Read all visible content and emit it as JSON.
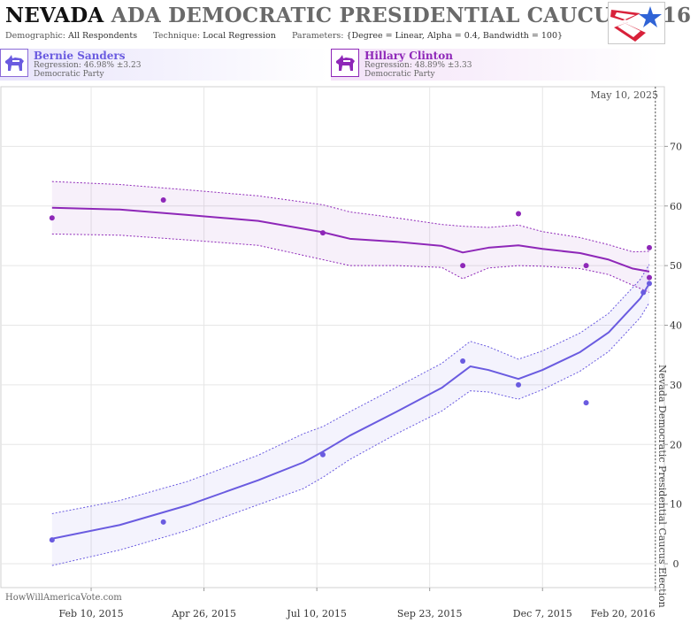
{
  "header": {
    "title_state": "NEVADA",
    "title_rest": "ADA DEMOCRATIC PRESIDENTIAL CAUCUS 2016",
    "demographic_label": "Demographic:",
    "demographic_value": "All Respondents",
    "technique_label": "Technique:",
    "technique_value": "Local Regression",
    "parameters_label": "Parameters:",
    "parameters_value": "{Degree = Linear, Alpha = 0.4, Bandwidth = 100}",
    "logo_icon": "star-flag-logo-icon"
  },
  "candidates": [
    {
      "name": "Bernie Sanders",
      "regression": "Regression: 46.98% ±3.23",
      "party": "Democratic Party",
      "color": "#6a5be0",
      "icon": "donkey-icon"
    },
    {
      "name": "Hillary Clinton",
      "regression": "Regression: 48.89% ±3.33",
      "party": "Democratic Party",
      "color": "#8e27b8",
      "icon": "donkey-icon"
    }
  ],
  "chart_data": {
    "type": "line",
    "date_label": "May 10, 2025",
    "election_label": "Nevada Democratic Presidential Caucus Election",
    "election_date": "2016-02-20",
    "watermark": "HowWillAmericaVote.com",
    "x_ticks": [
      {
        "date": "2015-02-10",
        "label": "Feb 10, 2015"
      },
      {
        "date": "2015-04-26",
        "label": "Apr 26, 2015"
      },
      {
        "date": "2015-07-10",
        "label": "Jul 10, 2015"
      },
      {
        "date": "2015-09-23",
        "label": "Sep 23, 2015"
      },
      {
        "date": "2015-12-07",
        "label": "Dec 7, 2015"
      },
      {
        "date": "2016-02-20",
        "label": "Feb 20, 2016"
      }
    ],
    "xlim": [
      "2014-12-12",
      "2016-02-26"
    ],
    "ylim": [
      -4,
      80
    ],
    "y_ticks": [
      0,
      10,
      20,
      30,
      40,
      50,
      60,
      70
    ],
    "grid": true,
    "series": [
      {
        "name": "Bernie Sanders",
        "color": "#6a5be0",
        "points": [
          {
            "date": "2015-01-15",
            "y": 4
          },
          {
            "date": "2015-03-30",
            "y": 7
          },
          {
            "date": "2015-07-14",
            "y": 18.3
          },
          {
            "date": "2015-10-15",
            "y": 34
          },
          {
            "date": "2015-11-21",
            "y": 30
          },
          {
            "date": "2016-01-05",
            "y": 27
          },
          {
            "date": "2016-02-12",
            "y": 45.5
          },
          {
            "date": "2016-02-16",
            "y": 47
          }
        ],
        "trend": [
          {
            "date": "2015-01-15",
            "y": 4.2,
            "lo": -0.3,
            "hi": 8.4
          },
          {
            "date": "2015-03-01",
            "y": 6.5,
            "lo": 2.3,
            "hi": 10.6
          },
          {
            "date": "2015-04-15",
            "y": 9.8,
            "lo": 5.6,
            "hi": 13.8
          },
          {
            "date": "2015-06-01",
            "y": 14.0,
            "lo": 9.9,
            "hi": 18.2
          },
          {
            "date": "2015-07-01",
            "y": 17.0,
            "lo": 12.6,
            "hi": 21.8
          },
          {
            "date": "2015-07-14",
            "y": 18.8,
            "lo": 14.5,
            "hi": 23.0
          },
          {
            "date": "2015-08-01",
            "y": 21.5,
            "lo": 17.5,
            "hi": 25.5
          },
          {
            "date": "2015-09-01",
            "y": 25.5,
            "lo": 21.8,
            "hi": 29.6
          },
          {
            "date": "2015-10-01",
            "y": 29.5,
            "lo": 25.6,
            "hi": 33.6
          },
          {
            "date": "2015-10-20",
            "y": 33.1,
            "lo": 29.0,
            "hi": 37.3
          },
          {
            "date": "2015-11-01",
            "y": 32.5,
            "lo": 28.8,
            "hi": 36.4
          },
          {
            "date": "2015-11-21",
            "y": 31.0,
            "lo": 27.6,
            "hi": 34.3
          },
          {
            "date": "2015-12-07",
            "y": 32.5,
            "lo": 29.2,
            "hi": 35.7
          },
          {
            "date": "2016-01-01",
            "y": 35.5,
            "lo": 32.3,
            "hi": 38.7
          },
          {
            "date": "2016-01-20",
            "y": 38.8,
            "lo": 35.6,
            "hi": 42.0
          },
          {
            "date": "2016-02-10",
            "y": 44.5,
            "lo": 41.3,
            "hi": 47.7
          },
          {
            "date": "2016-02-16",
            "y": 47.0,
            "lo": 43.8,
            "hi": 50.2
          }
        ]
      },
      {
        "name": "Hillary Clinton",
        "color": "#8e27b8",
        "points": [
          {
            "date": "2015-01-15",
            "y": 58
          },
          {
            "date": "2015-03-30",
            "y": 61
          },
          {
            "date": "2015-07-14",
            "y": 55.5
          },
          {
            "date": "2015-10-15",
            "y": 50
          },
          {
            "date": "2015-11-21",
            "y": 58.7
          },
          {
            "date": "2016-01-05",
            "y": 50
          },
          {
            "date": "2016-02-16",
            "y": 48
          },
          {
            "date": "2016-02-16",
            "y": 53
          }
        ],
        "trend": [
          {
            "date": "2015-01-15",
            "y": 59.7,
            "lo": 55.3,
            "hi": 64.1
          },
          {
            "date": "2015-03-01",
            "y": 59.4,
            "lo": 55.1,
            "hi": 63.6
          },
          {
            "date": "2015-04-15",
            "y": 58.5,
            "lo": 54.3,
            "hi": 62.7
          },
          {
            "date": "2015-06-01",
            "y": 57.5,
            "lo": 53.4,
            "hi": 61.7
          },
          {
            "date": "2015-07-14",
            "y": 55.6,
            "lo": 51.0,
            "hi": 60.2
          },
          {
            "date": "2015-08-01",
            "y": 54.5,
            "lo": 50.0,
            "hi": 59.0
          },
          {
            "date": "2015-09-01",
            "y": 54.0,
            "lo": 50.0,
            "hi": 58.0
          },
          {
            "date": "2015-10-01",
            "y": 53.3,
            "lo": 49.7,
            "hi": 56.9
          },
          {
            "date": "2015-10-15",
            "y": 52.2,
            "lo": 47.8,
            "hi": 56.6
          },
          {
            "date": "2015-11-01",
            "y": 53.0,
            "lo": 49.6,
            "hi": 56.4
          },
          {
            "date": "2015-11-21",
            "y": 53.4,
            "lo": 50.0,
            "hi": 56.8
          },
          {
            "date": "2015-12-07",
            "y": 52.8,
            "lo": 49.9,
            "hi": 55.7
          },
          {
            "date": "2016-01-01",
            "y": 52.1,
            "lo": 49.5,
            "hi": 54.7
          },
          {
            "date": "2016-01-20",
            "y": 51.0,
            "lo": 48.5,
            "hi": 53.5
          },
          {
            "date": "2016-02-05",
            "y": 49.5,
            "lo": 46.7,
            "hi": 52.3
          },
          {
            "date": "2016-02-16",
            "y": 49.0,
            "lo": 45.5,
            "hi": 52.4
          }
        ]
      }
    ]
  }
}
